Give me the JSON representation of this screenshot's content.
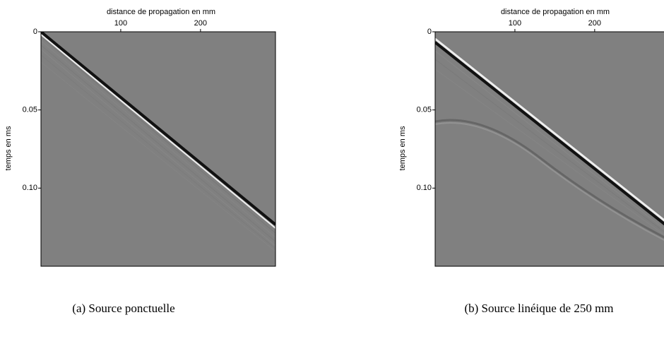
{
  "chart_data": [
    {
      "type": "image",
      "xlabel": "distance de propagation en mm",
      "ylabel": "temps en ms",
      "xlim": [
        0,
        294
      ],
      "xticks": [
        100,
        200
      ],
      "ylim": [
        0,
        0.15
      ],
      "yticks": [
        0,
        0.05,
        {
          "value": 0.1,
          "label": "0.10"
        }
      ],
      "caption": "(a) Source ponctuelle"
    },
    {
      "type": "image",
      "xlabel": "distance de propagation en mm",
      "ylabel": "temps en ms",
      "xlim": [
        0,
        294
      ],
      "xticks": [
        100,
        200
      ],
      "ylim": [
        0,
        0.15
      ],
      "yticks": [
        0,
        0.05,
        {
          "value": 0.1,
          "label": "0.10"
        }
      ],
      "caption": "(b) Source linéique de 250 mm"
    }
  ]
}
